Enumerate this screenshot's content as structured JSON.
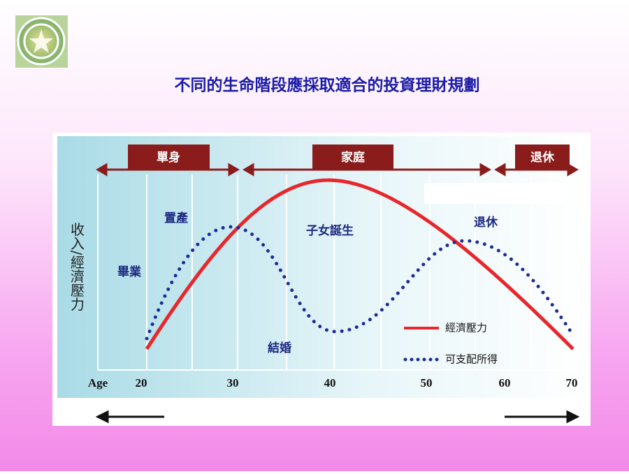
{
  "header": {
    "title": "不同的生命階段應採取適合的投資理財規劃"
  },
  "chart": {
    "stages": [
      "單身",
      "家庭",
      "退休"
    ],
    "y_axis_label": "收入/經濟壓力",
    "x_axis_label": "Age",
    "x_ticks": [
      "20",
      "30",
      "40",
      "50",
      "60",
      "70"
    ],
    "annotations": [
      "置產",
      "畢業",
      "子女誕生",
      "退休",
      "結婚"
    ],
    "legend": [
      "經濟壓力",
      "可支配所得"
    ]
  }
}
